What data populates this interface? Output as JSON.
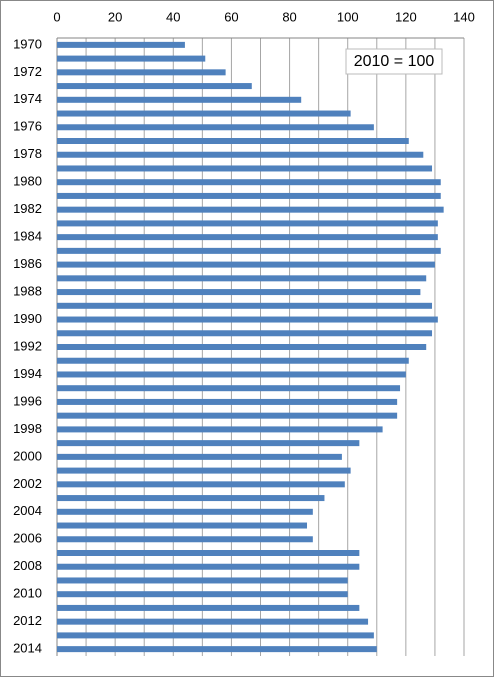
{
  "chart_data": {
    "type": "hbar",
    "annotation": "2010 = 100",
    "categories": [
      "1970",
      null,
      "1972",
      null,
      "1974",
      null,
      "1976",
      null,
      "1978",
      null,
      "1980",
      null,
      "1982",
      null,
      "1984",
      null,
      "1986",
      null,
      "1988",
      null,
      "1990",
      null,
      "1992",
      null,
      "1994",
      null,
      "1996",
      null,
      "1998",
      null,
      "2000",
      null,
      "2002",
      null,
      "2004",
      null,
      "2006",
      null,
      "2008",
      null,
      "2010",
      null,
      "2012",
      null,
      "2014"
    ],
    "values": [
      44,
      51,
      58,
      67,
      84,
      101,
      109,
      121,
      126,
      129,
      132,
      132,
      133,
      131,
      131,
      132,
      130,
      127,
      125,
      129,
      131,
      129,
      127,
      121,
      120,
      118,
      117,
      117,
      112,
      104,
      98,
      101,
      99,
      92,
      88,
      86,
      88,
      104,
      104,
      100,
      100,
      104,
      107,
      109,
      110
    ],
    "color": "#4f81bd",
    "xlim": [
      0,
      140
    ],
    "xticks": [
      0,
      20,
      40,
      60,
      80,
      100,
      120,
      140
    ],
    "x_minor_ticks": [
      10,
      30,
      50,
      70,
      90,
      110,
      130
    ],
    "grid": true
  }
}
